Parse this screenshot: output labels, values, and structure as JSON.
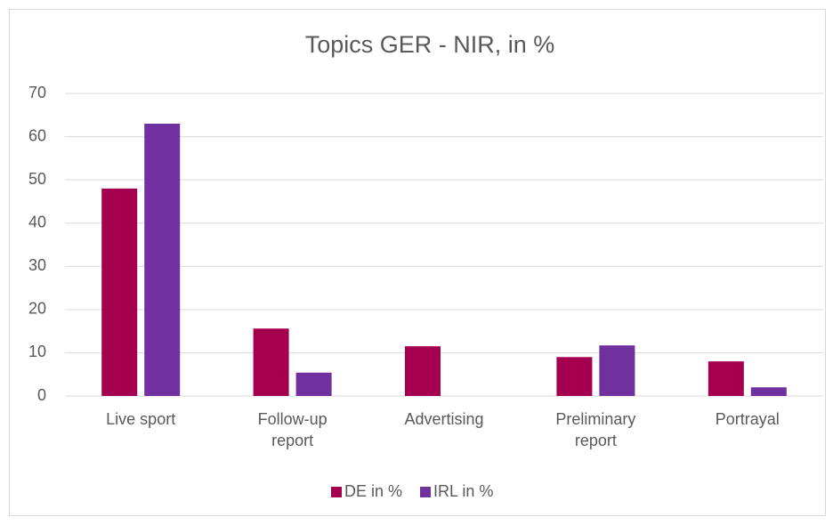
{
  "chart_data": {
    "type": "bar",
    "title": "Topics GER - NIR, in %",
    "categories": [
      "Live sport",
      "Follow-up report",
      "Advertising",
      "Preliminary report",
      "Portrayal"
    ],
    "series": [
      {
        "name": "DE in %",
        "color": "#a50050",
        "values": [
          48,
          15.6,
          11.5,
          9,
          8
        ]
      },
      {
        "name": "IRL in %",
        "color": "#7030a0",
        "values": [
          63,
          5.4,
          null,
          11.7,
          2
        ]
      }
    ],
    "ylim": [
      0,
      70
    ],
    "yticks": [
      0,
      10,
      20,
      30,
      40,
      50,
      60,
      70
    ],
    "grid": true,
    "legend": "bottom"
  }
}
